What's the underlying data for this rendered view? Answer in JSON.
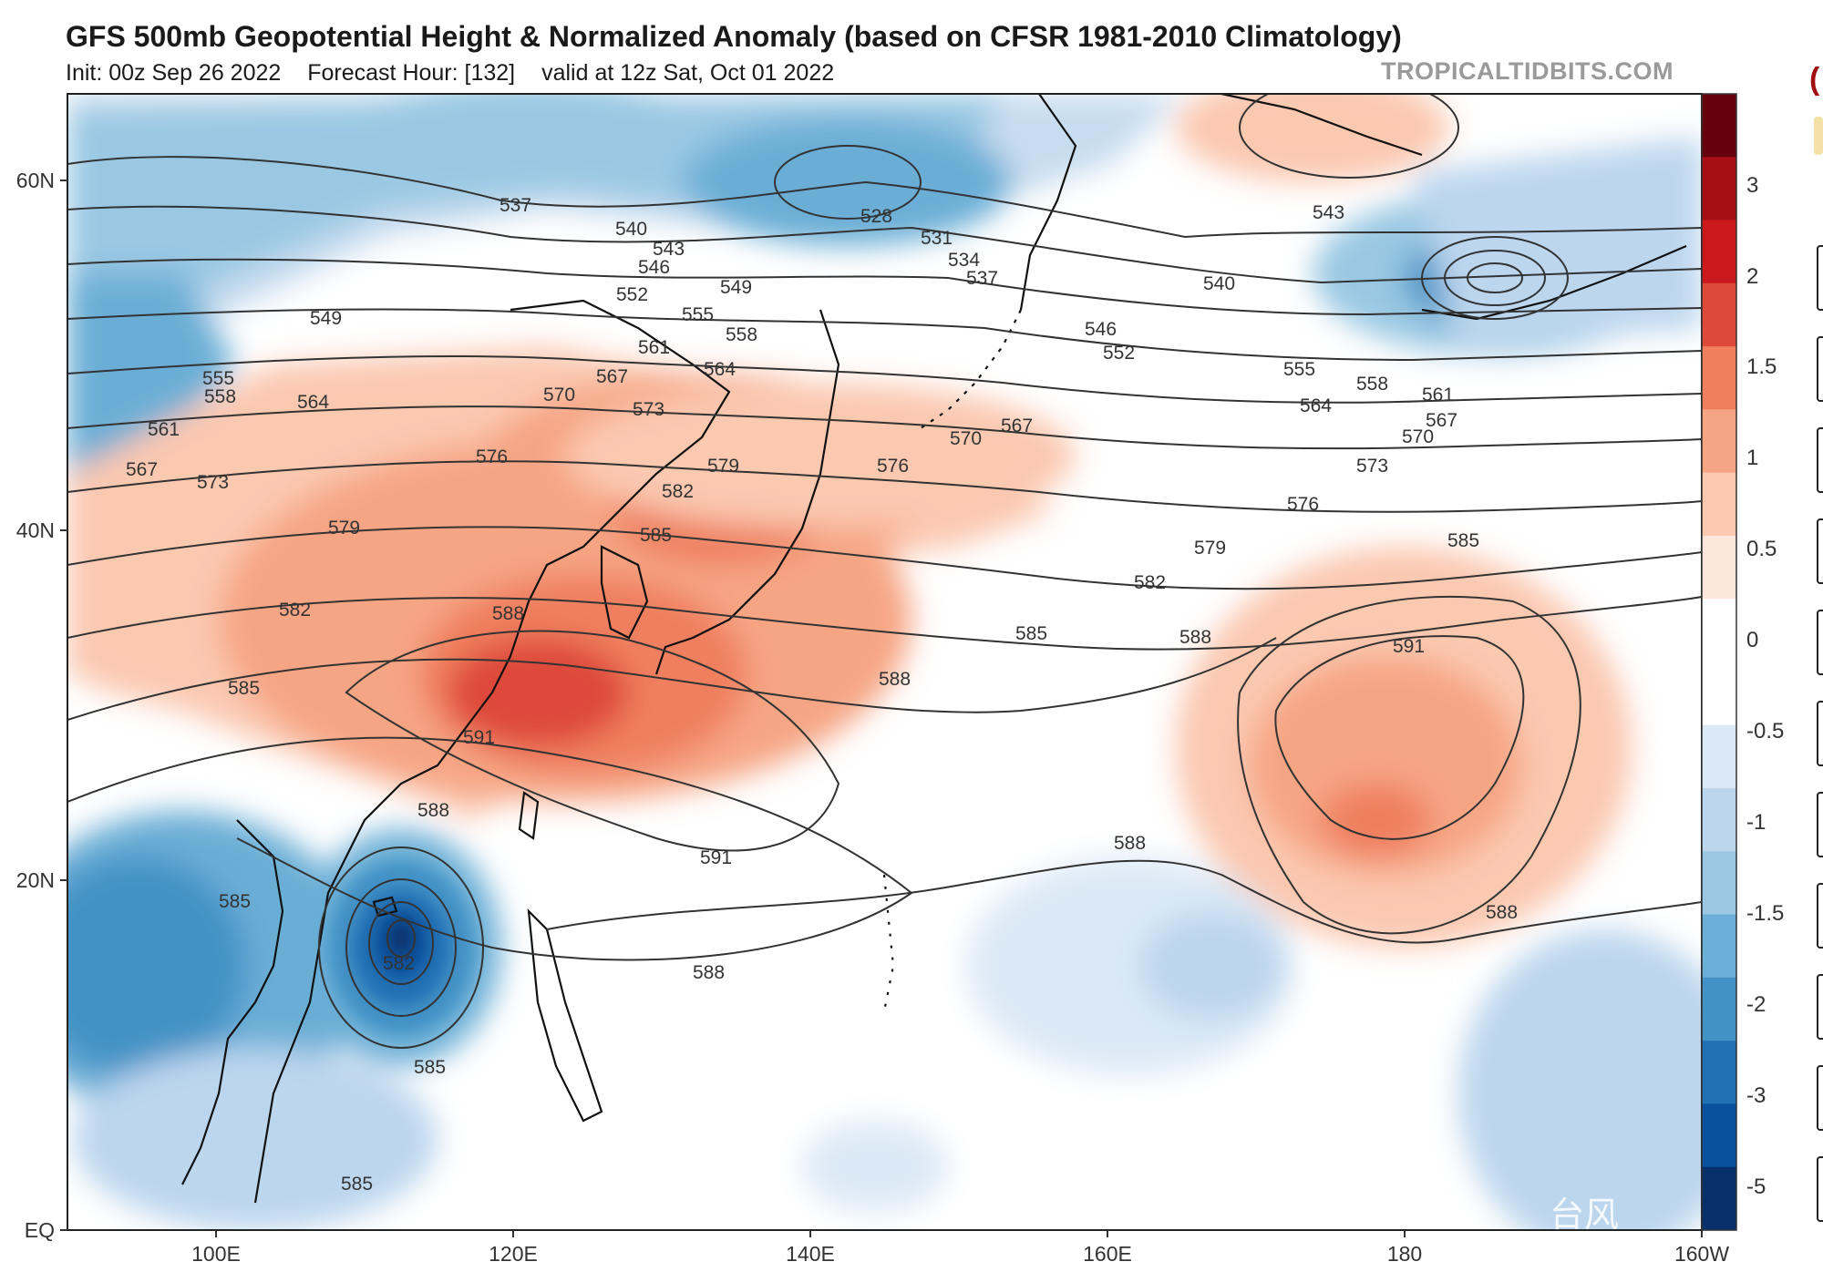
{
  "header": {
    "title": "GFS 500mb Geopotential Height & Normalized Anomaly (based on CFSR 1981-2010 Climatology)",
    "init": "Init: 00z Sep 26 2022",
    "forecast_hour": "Forecast Hour: [132]",
    "valid": "valid at 12z Sat, Oct 01 2022",
    "brand": "TROPICALTIDBITS.COM"
  },
  "axes": {
    "lat_labels": [
      "60N",
      "40N",
      "20N",
      "EQ"
    ],
    "lon_labels": [
      "100E",
      "120E",
      "140E",
      "160E",
      "180",
      "160W"
    ]
  },
  "colorbar": {
    "labels": [
      "3",
      "2",
      "1.5",
      "1",
      "0.5",
      "0",
      "-0.5",
      "-1",
      "-1.5",
      "-2",
      "-3",
      "-5"
    ],
    "colors": [
      "#67000d",
      "#a50f15",
      "#cb181d",
      "#de4a3a",
      "#ef7f5f",
      "#f6a584",
      "#fbc8b0",
      "#fde6dc",
      "#ffffff",
      "#ffffff",
      "#dbe9f6",
      "#bcd6ee",
      "#9ac8e3",
      "#6baed6",
      "#4292c6",
      "#2171b5",
      "#08519c",
      "#08306b"
    ]
  },
  "contour_labels": [
    "528",
    "531",
    "534",
    "537",
    "540",
    "543",
    "546",
    "549",
    "552",
    "555",
    "558",
    "561",
    "564",
    "567",
    "570",
    "573",
    "576",
    "579",
    "582",
    "585",
    "588",
    "591"
  ],
  "watermark": "台风",
  "side_mark": "("
}
